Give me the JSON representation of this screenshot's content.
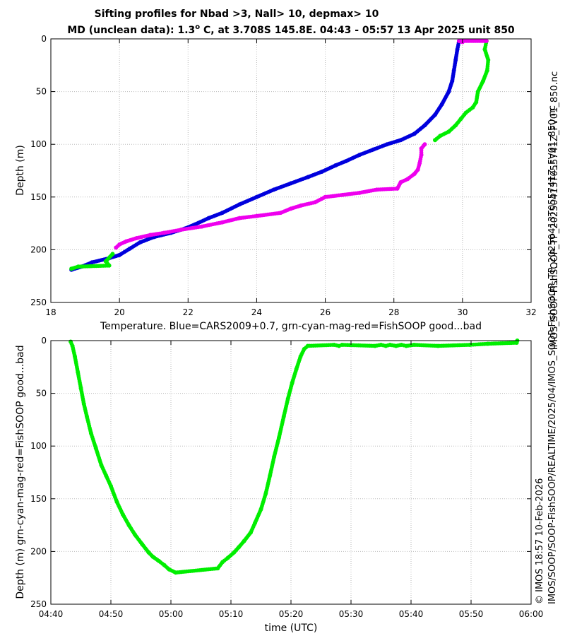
{
  "chart_data": [
    {
      "type": "scatter",
      "title": [
        "Sifting profiles for Nbad >3, Nall> 10, depmax> 10",
        "MD (unclean data): 1.3° C, at 3.708S 145.8E. 04:43 - 05:57 13 Apr 2025 unit 850"
      ],
      "title_degree": "o",
      "xlabel": "Temperature. Blue=CARS2009+0.7, grn-cyan-mag-red=FishSOOP good...bad",
      "ylabel": "Depth (m)",
      "xlim": [
        18,
        32
      ],
      "ylim": [
        250,
        0
      ],
      "xticks": [
        18,
        20,
        22,
        24,
        26,
        28,
        30,
        32
      ],
      "yticks": [
        0,
        50,
        100,
        150,
        200,
        250
      ],
      "grid": true,
      "series": [
        {
          "name": "CARS2009+0.7",
          "color": "#0000dd",
          "points": [
            [
              29.9,
              2
            ],
            [
              29.85,
              10
            ],
            [
              29.8,
              20
            ],
            [
              29.75,
              30
            ],
            [
              29.7,
              40
            ],
            [
              29.6,
              50
            ],
            [
              29.4,
              62
            ],
            [
              29.2,
              72
            ],
            [
              28.9,
              82
            ],
            [
              28.6,
              90
            ],
            [
              28.2,
              96
            ],
            [
              27.8,
              100
            ],
            [
              27.4,
              105
            ],
            [
              27.0,
              110
            ],
            [
              26.6,
              116
            ],
            [
              26.3,
              120
            ],
            [
              25.9,
              126
            ],
            [
              25.5,
              131
            ],
            [
              25.0,
              137
            ],
            [
              24.5,
              143
            ],
            [
              24.0,
              150
            ],
            [
              23.5,
              157
            ],
            [
              23.0,
              165
            ],
            [
              22.6,
              170
            ],
            [
              22.2,
              176
            ],
            [
              21.9,
              180
            ],
            [
              21.5,
              184
            ],
            [
              21.0,
              188
            ],
            [
              20.6,
              193
            ],
            [
              20.3,
              199
            ],
            [
              20.0,
              205
            ],
            [
              19.7,
              208
            ],
            [
              19.2,
              212
            ],
            [
              18.9,
              216
            ],
            [
              18.6,
              219
            ]
          ]
        },
        {
          "name": "FishSOOP good (green)",
          "color": "#00ee00",
          "points": [
            [
              30.7,
              2
            ],
            [
              30.65,
              10
            ],
            [
              30.75,
              20
            ],
            [
              30.72,
              30
            ],
            [
              30.6,
              40
            ],
            [
              30.45,
              50
            ],
            [
              30.4,
              60
            ],
            [
              30.3,
              65
            ],
            [
              30.1,
              70
            ],
            [
              29.95,
              76
            ],
            [
              29.8,
              82
            ],
            [
              29.6,
              88
            ],
            [
              29.35,
              92
            ],
            [
              29.2,
              96
            ],
            [
              19.8,
              204
            ],
            [
              19.6,
              211
            ],
            [
              19.7,
              215
            ],
            [
              18.8,
              216
            ],
            [
              18.6,
              218
            ]
          ]
        },
        {
          "name": "FishSOOP bad (magenta)",
          "color": "#ee00ee",
          "points": [
            [
              30.7,
              2
            ],
            [
              29.9,
              2
            ],
            [
              30.0,
              3
            ],
            [
              28.9,
              100
            ],
            [
              28.8,
              104
            ],
            [
              28.8,
              110
            ],
            [
              28.75,
              118
            ],
            [
              28.7,
              124
            ],
            [
              28.6,
              128
            ],
            [
              28.4,
              133
            ],
            [
              28.2,
              136
            ],
            [
              28.1,
              142
            ],
            [
              27.5,
              143
            ],
            [
              27.0,
              146
            ],
            [
              26.5,
              148
            ],
            [
              26.0,
              150
            ],
            [
              25.7,
              155
            ],
            [
              25.3,
              158
            ],
            [
              25.0,
              161
            ],
            [
              24.7,
              165
            ],
            [
              24.0,
              168
            ],
            [
              23.5,
              170
            ],
            [
              23.0,
              174
            ],
            [
              22.4,
              178
            ],
            [
              21.8,
              181
            ],
            [
              21.3,
              184
            ],
            [
              20.9,
              186
            ],
            [
              20.5,
              189
            ],
            [
              20.2,
              192
            ],
            [
              20.0,
              195
            ],
            [
              19.9,
              198
            ]
          ]
        }
      ]
    },
    {
      "type": "scatter",
      "xlabel": "time (UTC)",
      "ylabel": "Depth (m) grn-cyan-mag-red=FishSOOP good...bad",
      "xlim": [
        0,
        80
      ],
      "ylim": [
        250,
        0
      ],
      "xticks": [
        "04:40",
        "04:50",
        "05:00",
        "05:10",
        "05:20",
        "05:30",
        "05:40",
        "05:50",
        "06:00"
      ],
      "yticks": [
        0,
        50,
        100,
        150,
        200,
        250
      ],
      "grid": true,
      "time_origin": "04:40",
      "time_unit": "minutes",
      "series": [
        {
          "name": "FishSOOP good (green)",
          "color": "#00ee00",
          "points": [
            [
              3.3,
              1
            ],
            [
              3.6,
              5
            ],
            [
              4.0,
              15
            ],
            [
              4.5,
              30
            ],
            [
              5.0,
              45
            ],
            [
              5.5,
              60
            ],
            [
              6.0,
              72
            ],
            [
              6.7,
              88
            ],
            [
              7.5,
              102
            ],
            [
              8.4,
              118
            ],
            [
              9.2,
              128
            ],
            [
              10.0,
              138
            ],
            [
              11.0,
              153
            ],
            [
              12.0,
              165
            ],
            [
              13.0,
              175
            ],
            [
              14.0,
              184
            ],
            [
              15.2,
              193
            ],
            [
              16.3,
              201
            ],
            [
              17.0,
              205
            ],
            [
              18.0,
              209
            ],
            [
              18.9,
              213
            ],
            [
              19.7,
              217
            ],
            [
              20.8,
              220
            ],
            [
              27.8,
              216
            ],
            [
              28.6,
              210
            ],
            [
              29.5,
              206
            ],
            [
              30.5,
              201
            ],
            [
              31.3,
              196
            ],
            [
              32.2,
              190
            ],
            [
              33.3,
              182
            ],
            [
              34.0,
              173
            ],
            [
              35.0,
              160
            ],
            [
              35.8,
              145
            ],
            [
              36.5,
              128
            ],
            [
              37.2,
              110
            ],
            [
              38.0,
              92
            ],
            [
              38.8,
              72
            ],
            [
              39.5,
              55
            ],
            [
              40.2,
              40
            ],
            [
              40.9,
              27
            ],
            [
              41.6,
              15
            ],
            [
              42.2,
              8
            ],
            [
              42.8,
              5
            ],
            [
              47.2,
              4
            ],
            [
              48.0,
              5
            ],
            [
              48.5,
              4
            ],
            [
              54.0,
              5
            ],
            [
              55.0,
              4
            ],
            [
              55.8,
              5
            ],
            [
              56.5,
              4
            ],
            [
              57.5,
              5
            ],
            [
              58.4,
              4
            ],
            [
              59.2,
              5
            ],
            [
              60.5,
              4
            ],
            [
              64.5,
              5
            ],
            [
              69.8,
              4
            ],
            [
              72.8,
              3
            ],
            [
              77.6,
              2
            ],
            [
              77.7,
              0
            ]
          ]
        }
      ]
    }
  ],
  "side_text": {
    "right": "IMOS_SOOP-FishSOOP_TP_20250413T055741Z_FV01_850.nc",
    "left_line1": "© IMOS 18:57 10-Feb-2026",
    "left_line2": "IMOS/SOOP/SOOP-FishSOOP/REALTIME/2025/04/IMOS_SOOP-FishSOOP_TP_20250413T055741Z_FV01_850.nc"
  }
}
